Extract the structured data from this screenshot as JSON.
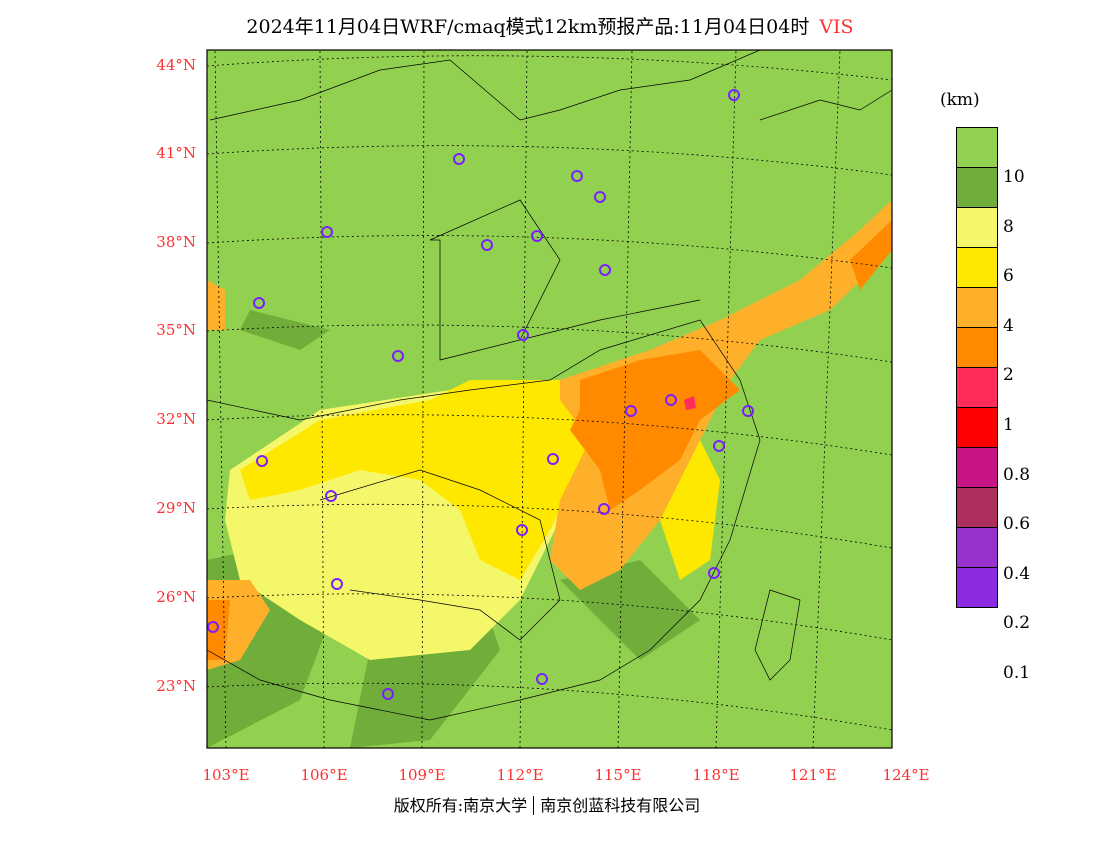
{
  "title": {
    "text": "2024年11月04日WRF/cmaq模式12km预报产品:11月04日04时",
    "variable": "VIS"
  },
  "lat_labels": [
    "44°N",
    "41°N",
    "38°N",
    "35°N",
    "32°N",
    "29°N",
    "26°N",
    "23°N"
  ],
  "lon_labels": [
    "103°E",
    "106°E",
    "109°E",
    "112°E",
    "115°E",
    "118°E",
    "121°E",
    "124°E"
  ],
  "legend": {
    "unit": "(km)",
    "colors": [
      "#92d050",
      "#70ad3a",
      "#f5f76a",
      "#ffe800",
      "#ffb02a",
      "#ff8a00",
      "#ff2d5a",
      "#ff0000",
      "#c71585",
      "#ad2f5e",
      "#9932cc",
      "#8a2be2"
    ],
    "labels": [
      "10",
      "8",
      "6",
      "4",
      "2",
      "1",
      "0.8",
      "0.6",
      "0.4",
      "0.2",
      "0.1"
    ]
  },
  "credit": {
    "left": "版权所有:南京大学",
    "right": "南京创蓝科技有限公司"
  }
}
